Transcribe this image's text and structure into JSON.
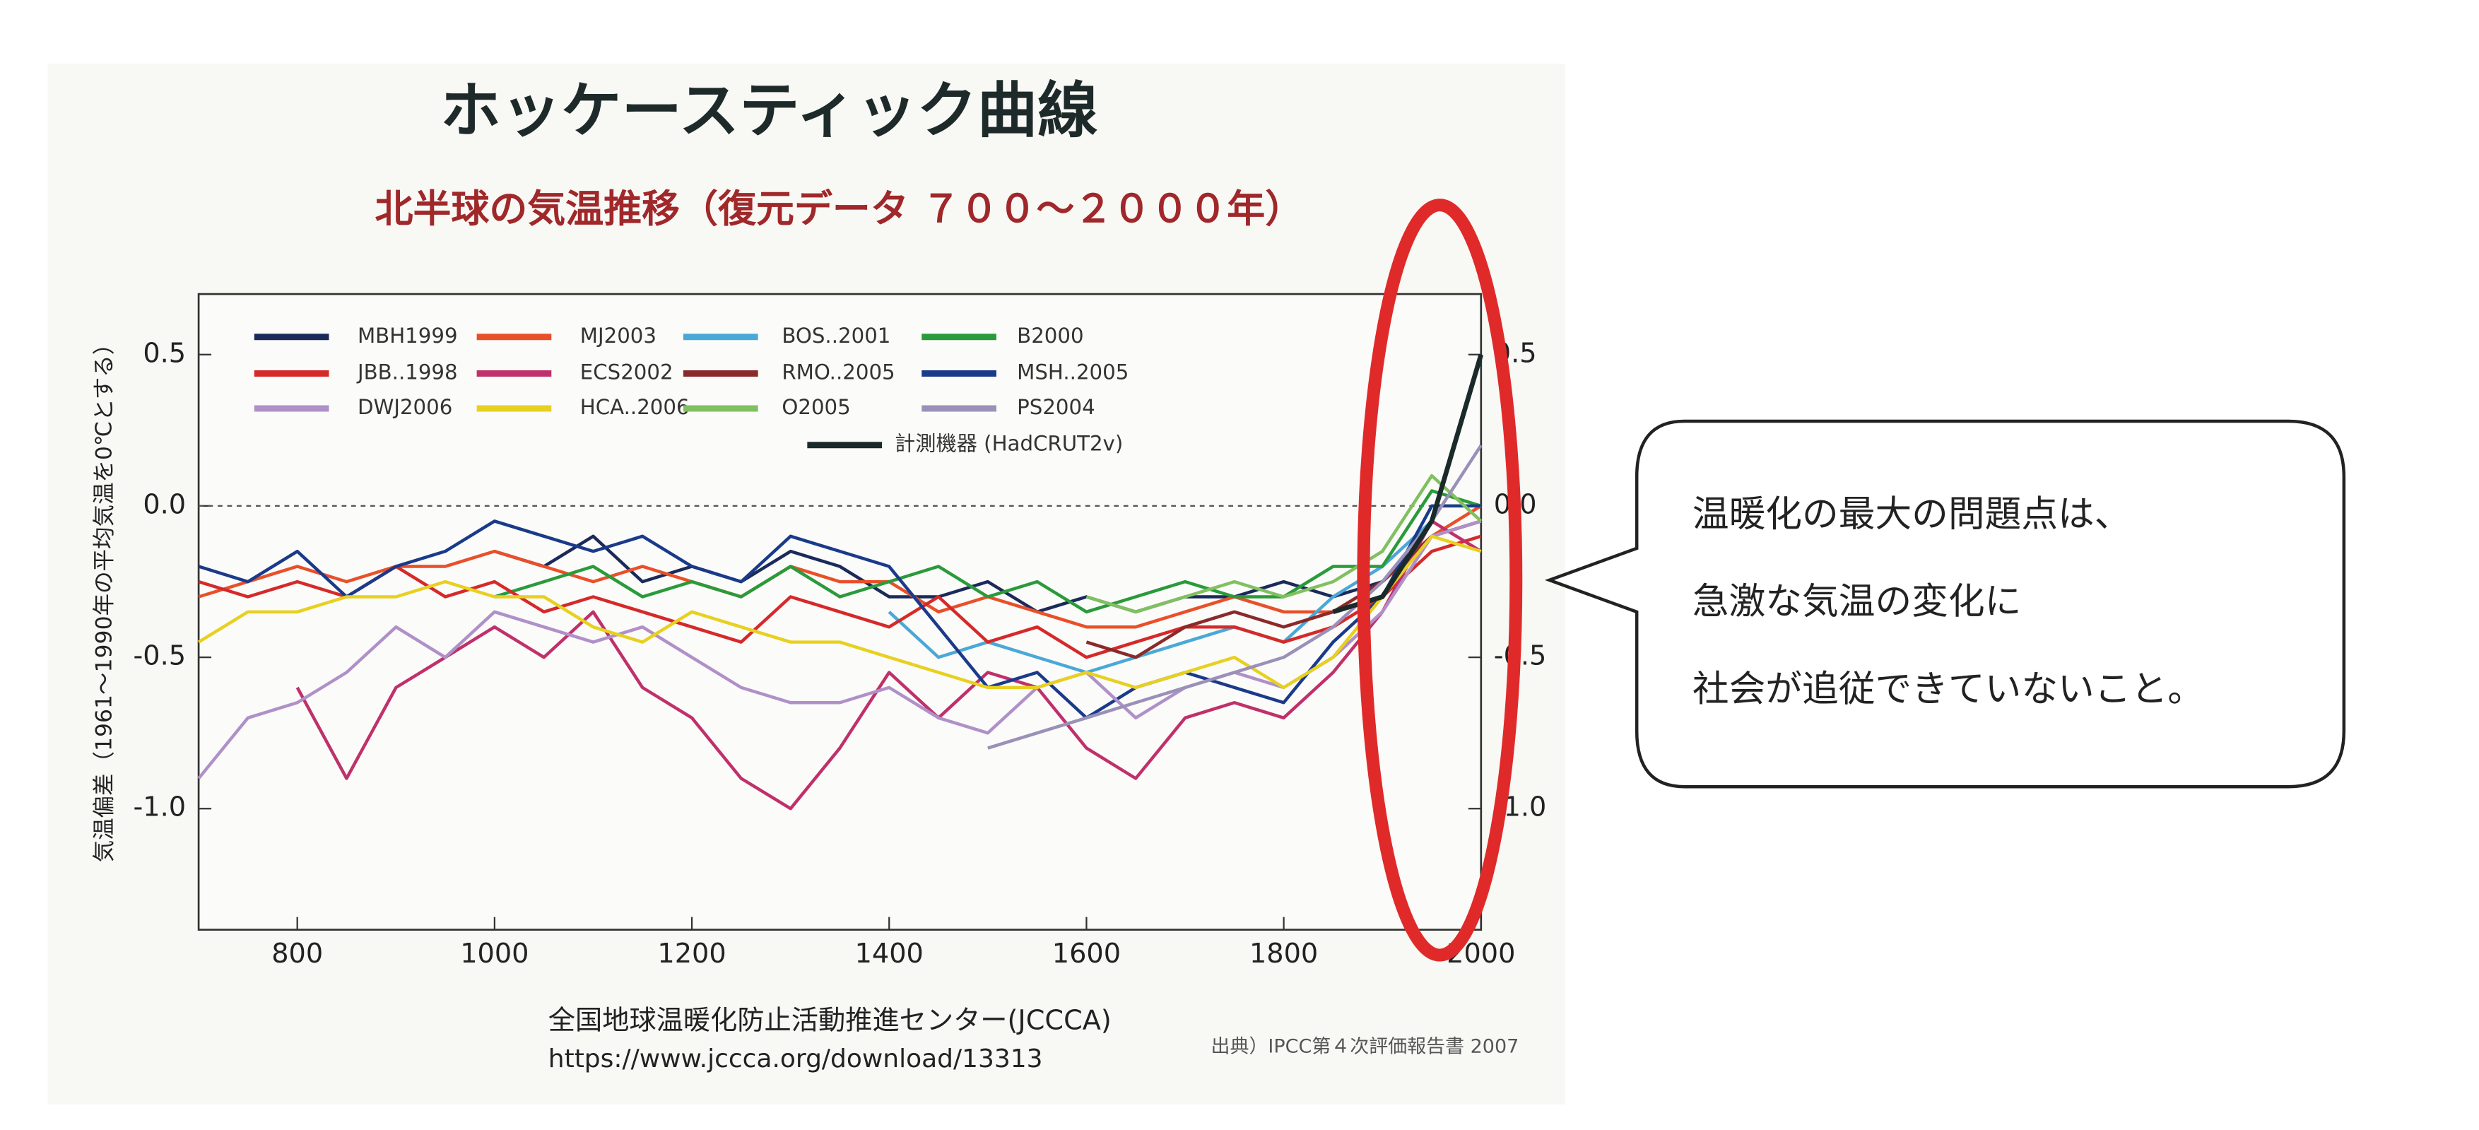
{
  "chart_data": {
    "type": "line",
    "title": "ホッケースティック曲線",
    "subtitle": "北半球の気温推移（復元データ ７００～２０００年）",
    "y_label": "気温偏差（1961～1990年の平均気温を0℃とする）",
    "source": "全国地球温暖化防止活動推進センター(JCCCA)",
    "url": "https://www.jccca.org/download/13313",
    "citation": "出典）IPCC第４次評価報告書 2007",
    "callout": [
      "温暖化の最大の問題点は、",
      "急激な気温の変化に",
      "社会が追従できていないこと。"
    ],
    "x": [
      700,
      750,
      800,
      850,
      900,
      950,
      1000,
      1050,
      1100,
      1150,
      1200,
      1250,
      1300,
      1350,
      1400,
      1450,
      1500,
      1550,
      1600,
      1650,
      1700,
      1750,
      1800,
      1850,
      1900,
      1950,
      2000
    ],
    "xlim": [
      700,
      2000
    ],
    "xticks": [
      800,
      1000,
      1200,
      1400,
      1600,
      1800,
      2000
    ],
    "ylim": [
      -1.4,
      0.7
    ],
    "yticks": [
      0.5,
      {
        "value": 0,
        "label": "0.0"
      },
      -0.5,
      {
        "value": -1,
        "label": "-1.0"
      }
    ],
    "series": [
      {
        "name": "MBH1999",
        "color": "#1a2a5a",
        "values": [
          null,
          null,
          null,
          null,
          null,
          null,
          -0.15,
          -0.2,
          -0.1,
          -0.25,
          -0.2,
          -0.25,
          -0.15,
          -0.2,
          -0.3,
          -0.3,
          -0.25,
          -0.35,
          -0.3,
          -0.35,
          -0.3,
          -0.3,
          -0.25,
          -0.3,
          -0.25,
          -0.1,
          -0.05
        ]
      },
      {
        "name": "MJ2003",
        "color": "#e8502a",
        "values": [
          -0.3,
          -0.25,
          -0.2,
          -0.25,
          -0.2,
          -0.2,
          -0.15,
          -0.2,
          -0.25,
          -0.2,
          -0.25,
          -0.3,
          -0.2,
          -0.25,
          -0.25,
          -0.35,
          -0.3,
          -0.35,
          -0.4,
          -0.4,
          -0.35,
          -0.3,
          -0.35,
          -0.35,
          -0.25,
          -0.1,
          0.0
        ]
      },
      {
        "name": "BOS..2001",
        "color": "#4aa8d8",
        "values": [
          null,
          null,
          null,
          null,
          null,
          null,
          null,
          null,
          null,
          null,
          null,
          null,
          null,
          null,
          -0.35,
          -0.5,
          -0.45,
          -0.5,
          -0.55,
          -0.5,
          -0.45,
          -0.4,
          -0.45,
          -0.3,
          -0.2,
          -0.05,
          null
        ]
      },
      {
        "name": "B2000",
        "color": "#2a9a3a",
        "values": [
          null,
          null,
          null,
          null,
          null,
          null,
          -0.3,
          -0.25,
          -0.2,
          -0.3,
          -0.25,
          -0.3,
          -0.2,
          -0.3,
          -0.25,
          -0.2,
          -0.3,
          -0.25,
          -0.35,
          -0.3,
          -0.25,
          -0.3,
          -0.3,
          -0.2,
          -0.2,
          0.05,
          0.0
        ]
      },
      {
        "name": "JBB..1998",
        "color": "#d42a2a",
        "values": [
          -0.25,
          -0.3,
          -0.25,
          -0.3,
          -0.2,
          -0.3,
          -0.25,
          -0.35,
          -0.3,
          -0.35,
          -0.4,
          -0.45,
          -0.3,
          -0.35,
          -0.4,
          -0.3,
          -0.45,
          -0.4,
          -0.5,
          -0.45,
          -0.4,
          -0.4,
          -0.45,
          -0.4,
          -0.3,
          -0.15,
          -0.1
        ]
      },
      {
        "name": "ECS2002",
        "color": "#c0306a",
        "values": [
          null,
          null,
          -0.6,
          -0.9,
          -0.6,
          -0.5,
          -0.4,
          -0.5,
          -0.35,
          -0.6,
          -0.7,
          -0.9,
          -1.0,
          -0.8,
          -0.55,
          -0.7,
          -0.55,
          -0.6,
          -0.8,
          -0.9,
          -0.7,
          -0.65,
          -0.7,
          -0.55,
          -0.35,
          -0.05,
          -0.15
        ]
      },
      {
        "name": "RMO..2005",
        "color": "#8a2a2a",
        "values": [
          null,
          null,
          null,
          null,
          null,
          null,
          null,
          null,
          null,
          null,
          null,
          null,
          null,
          null,
          null,
          null,
          null,
          null,
          -0.45,
          -0.5,
          -0.4,
          -0.35,
          -0.4,
          -0.35,
          -0.25,
          -0.1,
          -0.05
        ]
      },
      {
        "name": "MSH..2005",
        "color": "#1a3a8a",
        "values": [
          -0.2,
          -0.25,
          -0.15,
          -0.3,
          -0.2,
          -0.15,
          -0.05,
          -0.1,
          -0.15,
          -0.1,
          -0.2,
          -0.25,
          -0.1,
          -0.15,
          -0.2,
          -0.4,
          -0.6,
          -0.55,
          -0.7,
          -0.6,
          -0.55,
          -0.6,
          -0.65,
          -0.45,
          -0.3,
          0.0,
          0.0
        ]
      },
      {
        "name": "DWJ2006",
        "color": "#b090c8",
        "values": [
          -0.9,
          -0.7,
          -0.65,
          -0.55,
          -0.4,
          -0.5,
          -0.35,
          -0.4,
          -0.45,
          -0.4,
          -0.5,
          -0.6,
          -0.65,
          -0.65,
          -0.6,
          -0.7,
          -0.75,
          -0.6,
          -0.55,
          -0.7,
          -0.6,
          -0.55,
          -0.6,
          -0.5,
          -0.35,
          -0.1,
          -0.05
        ]
      },
      {
        "name": "HCA..2006",
        "color": "#e8d020",
        "values": [
          -0.45,
          -0.35,
          -0.35,
          -0.3,
          -0.3,
          -0.25,
          -0.3,
          -0.3,
          -0.4,
          -0.45,
          -0.35,
          -0.4,
          -0.45,
          -0.45,
          -0.5,
          -0.55,
          -0.6,
          -0.6,
          -0.55,
          -0.6,
          -0.55,
          -0.5,
          -0.6,
          -0.5,
          -0.3,
          -0.1,
          -0.15
        ]
      },
      {
        "name": "O2005",
        "color": "#80c060",
        "values": [
          null,
          null,
          null,
          null,
          null,
          null,
          null,
          null,
          null,
          null,
          null,
          null,
          null,
          null,
          null,
          null,
          null,
          null,
          -0.3,
          -0.35,
          -0.3,
          -0.25,
          -0.3,
          -0.25,
          -0.15,
          0.1,
          -0.05
        ]
      },
      {
        "name": "PS2004",
        "color": "#9a90b8",
        "values": [
          null,
          null,
          null,
          null,
          null,
          null,
          null,
          null,
          null,
          null,
          null,
          null,
          null,
          null,
          null,
          null,
          -0.8,
          -0.75,
          -0.7,
          -0.65,
          -0.6,
          -0.55,
          -0.5,
          -0.4,
          -0.25,
          -0.05,
          0.2
        ]
      },
      {
        "name": "計測機器 (HadCRUT2v)",
        "color": "#1a2a2a",
        "values": [
          null,
          null,
          null,
          null,
          null,
          null,
          null,
          null,
          null,
          null,
          null,
          null,
          null,
          null,
          null,
          null,
          null,
          null,
          null,
          null,
          null,
          null,
          null,
          -0.35,
          -0.3,
          -0.05,
          0.5
        ]
      }
    ]
  }
}
